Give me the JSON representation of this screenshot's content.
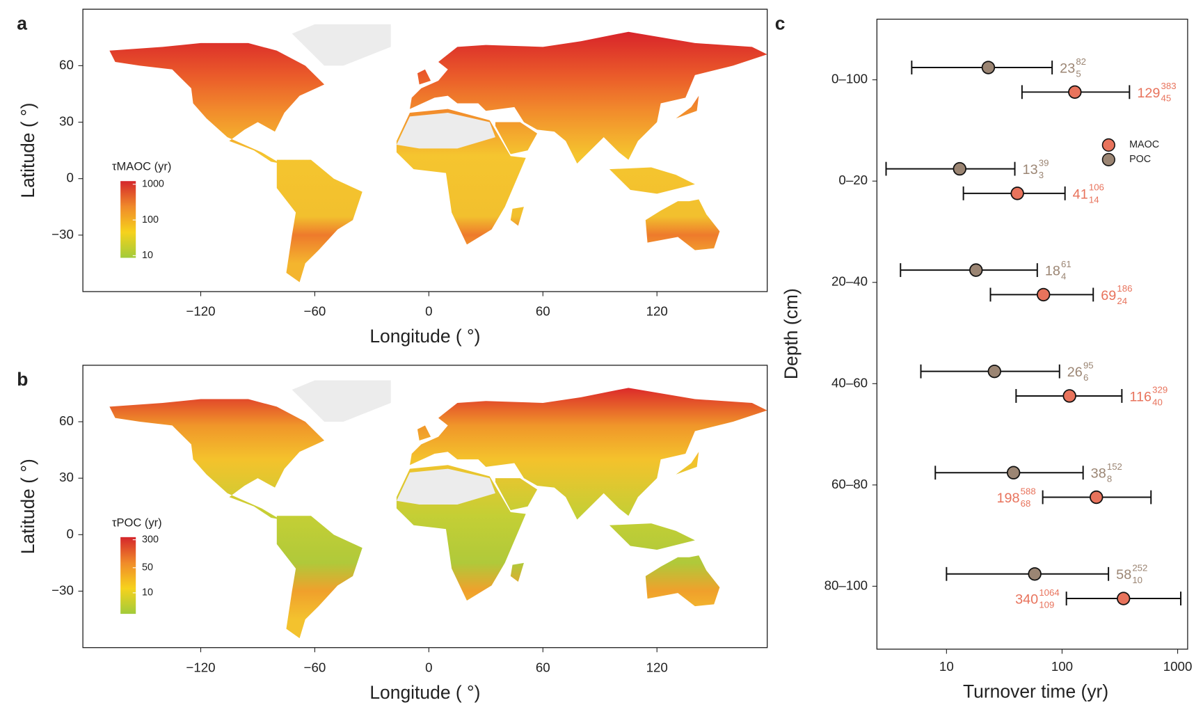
{
  "chart_data": [
    {
      "type": "map",
      "title": "a",
      "xlabel": "Longitude ( °)",
      "ylabel": "Latitude ( °)",
      "xlim": [
        -182,
        178
      ],
      "ylim": [
        -60,
        90
      ],
      "xticks": [
        {
          "value": -120,
          "label": "−120"
        },
        {
          "value": -60,
          "label": "−60"
        },
        0,
        60,
        120
      ],
      "yticks": [
        {
          "value": -30,
          "label": "−30"
        },
        0,
        30,
        60
      ],
      "colorbar_title": "τMAOC (yr)",
      "colorbar_log": true,
      "colorbar_lim": [
        8.7,
        1230
      ],
      "colorbar_ticks": [
        10,
        100,
        1000
      ],
      "colorbar_colors": [
        "#a2cb3a",
        "#f6d21c",
        "#f08a2a",
        "#d4262b"
      ]
    },
    {
      "type": "map",
      "title": "b",
      "xlabel": "Longitude ( °)",
      "ylabel": "Latitude ( °)",
      "xlim": [
        -182,
        178
      ],
      "ylim": [
        -60,
        90
      ],
      "xticks": [
        {
          "value": -120,
          "label": "−120"
        },
        {
          "value": -60,
          "label": "−60"
        },
        0,
        60,
        120
      ],
      "yticks": [
        {
          "value": -30,
          "label": "−30"
        },
        0,
        30,
        60
      ],
      "colorbar_title": "τPOC (yr)",
      "colorbar_log": true,
      "colorbar_lim": [
        2.6,
        355
      ],
      "colorbar_ticks": [
        10,
        50,
        300
      ],
      "colorbar_colors": [
        "#a2cb3a",
        "#f6d21c",
        "#f08a2a",
        "#d4262b"
      ]
    },
    {
      "type": "errorbar",
      "title": "c",
      "xlabel": "Turnover time (yr)",
      "ylabel": "Depth (cm)",
      "categories": [
        "0–100",
        "0–20",
        "20–40",
        "40–60",
        "60–80",
        "80–100"
      ],
      "xscale": "log",
      "xlim": [
        2.5,
        1220
      ],
      "xticks": [
        10,
        100,
        1000
      ],
      "series": [
        {
          "name": "MAOC",
          "color": "#e8735c",
          "values": [
            129,
            41,
            69,
            116,
            198,
            340
          ],
          "lower": [
            45,
            14,
            24,
            40,
            68,
            109
          ],
          "upper": [
            383,
            106,
            186,
            329,
            588,
            1064
          ]
        },
        {
          "name": "POC",
          "color": "#9b8573",
          "values": [
            23,
            13,
            18,
            26,
            38,
            58
          ],
          "lower": [
            5,
            3,
            4,
            6,
            8,
            10
          ],
          "upper": [
            82,
            39,
            61,
            95,
            152,
            252
          ]
        }
      ]
    }
  ]
}
